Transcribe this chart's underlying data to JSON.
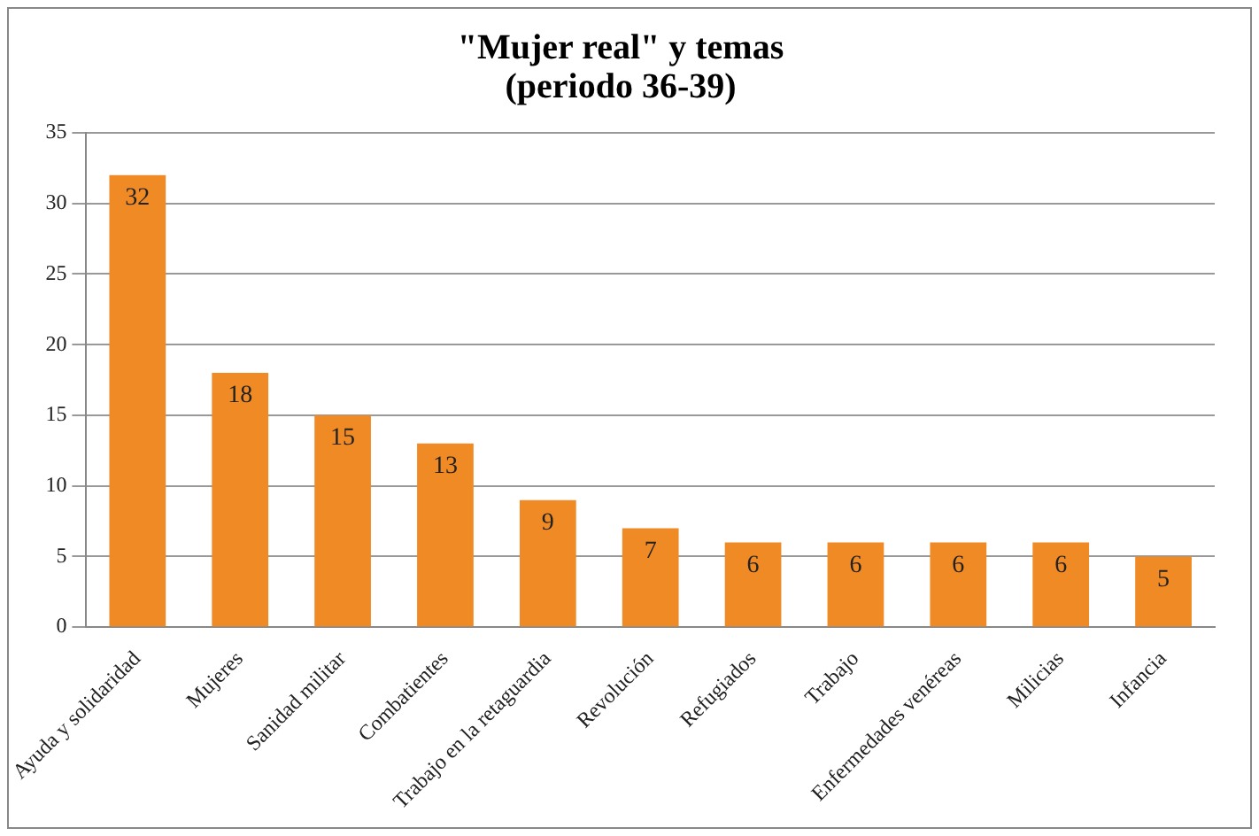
{
  "chart_data": {
    "type": "bar",
    "title": [
      "\"Mujer real\" y temas",
      "(periodo 36-39)"
    ],
    "categories": [
      "Ayuda y solidaridad",
      "Mujeres",
      "Sanidad militar",
      "Combatientes",
      "Trabajo en la retaguardia",
      "Revolución",
      "Refugiados",
      "Trabajo",
      "Enfermedades venéreas",
      "Milicias",
      "Infancia"
    ],
    "values": [
      32,
      18,
      15,
      13,
      9,
      7,
      6,
      6,
      6,
      6,
      5
    ],
    "color": "#f08a24",
    "ylim": [
      0,
      35
    ],
    "yticks": [
      0,
      5,
      10,
      15,
      20,
      25,
      30,
      35
    ],
    "grid": "y",
    "data_labels": true,
    "legend": false
  }
}
